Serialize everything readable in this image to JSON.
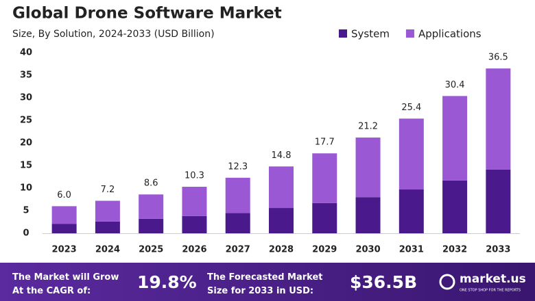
{
  "chart_data": {
    "type": "stacked_bar",
    "title": "Global Drone Software Market",
    "subtitle": "Size, By Solution, 2024-2033 (USD Billion)",
    "categories": [
      "2023",
      "2024",
      "2025",
      "2026",
      "2027",
      "2028",
      "2029",
      "2030",
      "2031",
      "2032",
      "2033"
    ],
    "series": [
      {
        "name": "System",
        "color": "#4a1a8c",
        "values": [
          2.1,
          2.6,
          3.2,
          3.8,
          4.5,
          5.6,
          6.7,
          8.0,
          9.7,
          11.7,
          14.1
        ]
      },
      {
        "name": "Applications",
        "color": "#9b58d4",
        "values": [
          3.9,
          4.6,
          5.4,
          6.5,
          7.8,
          9.2,
          11.0,
          13.2,
          15.7,
          18.7,
          22.4
        ]
      }
    ],
    "totals": [
      6.0,
      7.2,
      8.6,
      10.3,
      12.3,
      14.8,
      17.7,
      21.2,
      25.4,
      30.4,
      36.5
    ],
    "total_labels": [
      "6.0",
      "7.2",
      "8.6",
      "10.3",
      "12.3",
      "14.8",
      "17.7",
      "21.2",
      "25.4",
      "30.4",
      "36.5"
    ],
    "ylim": [
      0,
      40
    ],
    "yticks": [
      0,
      5,
      10,
      15,
      20,
      25,
      30,
      35,
      40
    ],
    "grid": false,
    "legend": "top-right"
  },
  "footer": {
    "cagr_text": "The Market will Grow At the CAGR of:",
    "cagr_value": "19.8%",
    "forecast_text": "The Forecasted Market Size for 2033 in USD:",
    "forecast_value": "$36.5B",
    "brand": "market.us",
    "tagline": "ONE STOP SHOP FOR THE REPORTS"
  }
}
